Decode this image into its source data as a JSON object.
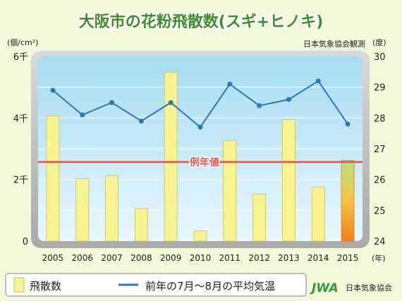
{
  "chart_data": {
    "type": "bar+line",
    "title": "大阪市の花粉飛散数(スギ+ヒノキ)",
    "source": "日本気象協会観測",
    "left_unit": "(個/cm²)",
    "right_unit": "(度)",
    "x_unit": "(年)",
    "categories": [
      "2005",
      "2006",
      "2007",
      "2008",
      "2009",
      "2010",
      "2011",
      "2012",
      "2013",
      "2014",
      "2015"
    ],
    "left_axis": {
      "ylim": [
        0,
        6000
      ],
      "ticks": [
        0,
        2000,
        4000,
        6000
      ],
      "tick_labels": [
        "0",
        "2千",
        "4千",
        "6千"
      ]
    },
    "right_axis": {
      "ylim": [
        24,
        30
      ],
      "ticks": [
        24,
        25,
        26,
        27,
        28,
        29,
        30
      ],
      "tick_labels": [
        "24",
        "25",
        "26",
        "27",
        "28",
        "29",
        "30"
      ]
    },
    "series": [
      {
        "name": "飛散数",
        "type": "bar",
        "axis": "left",
        "values": [
          4070,
          2030,
          2130,
          1060,
          5480,
          330,
          3260,
          1530,
          3950,
          1750,
          2620
        ]
      },
      {
        "name": "前年の7月〜8月の平均気温",
        "type": "line",
        "axis": "right",
        "values": [
          28.9,
          28.1,
          28.5,
          27.9,
          28.5,
          27.7,
          29.1,
          28.4,
          28.6,
          29.2,
          27.8
        ]
      }
    ],
    "reference_line": {
      "label": "例年値",
      "value": 2570
    },
    "colors": {
      "bar": "#f8f290",
      "bar_highlight_top": "#b8e27a",
      "bar_highlight_bottom": "#f58a1f",
      "line": "#2a78b8",
      "reference": "#e8534e",
      "title": "#3c8f2a",
      "plot_bg_top": "#a8dcf2",
      "plot_bg_bottom": "#e6f6fc",
      "frame": "#b7b7b7"
    },
    "grid": true,
    "legend_position": "bottom"
  },
  "legend": {
    "bar_label": "飛散数",
    "line_label": "前年の7月〜8月の平均気温"
  },
  "logo": {
    "text": "JWA",
    "org": "日本気象協会"
  }
}
